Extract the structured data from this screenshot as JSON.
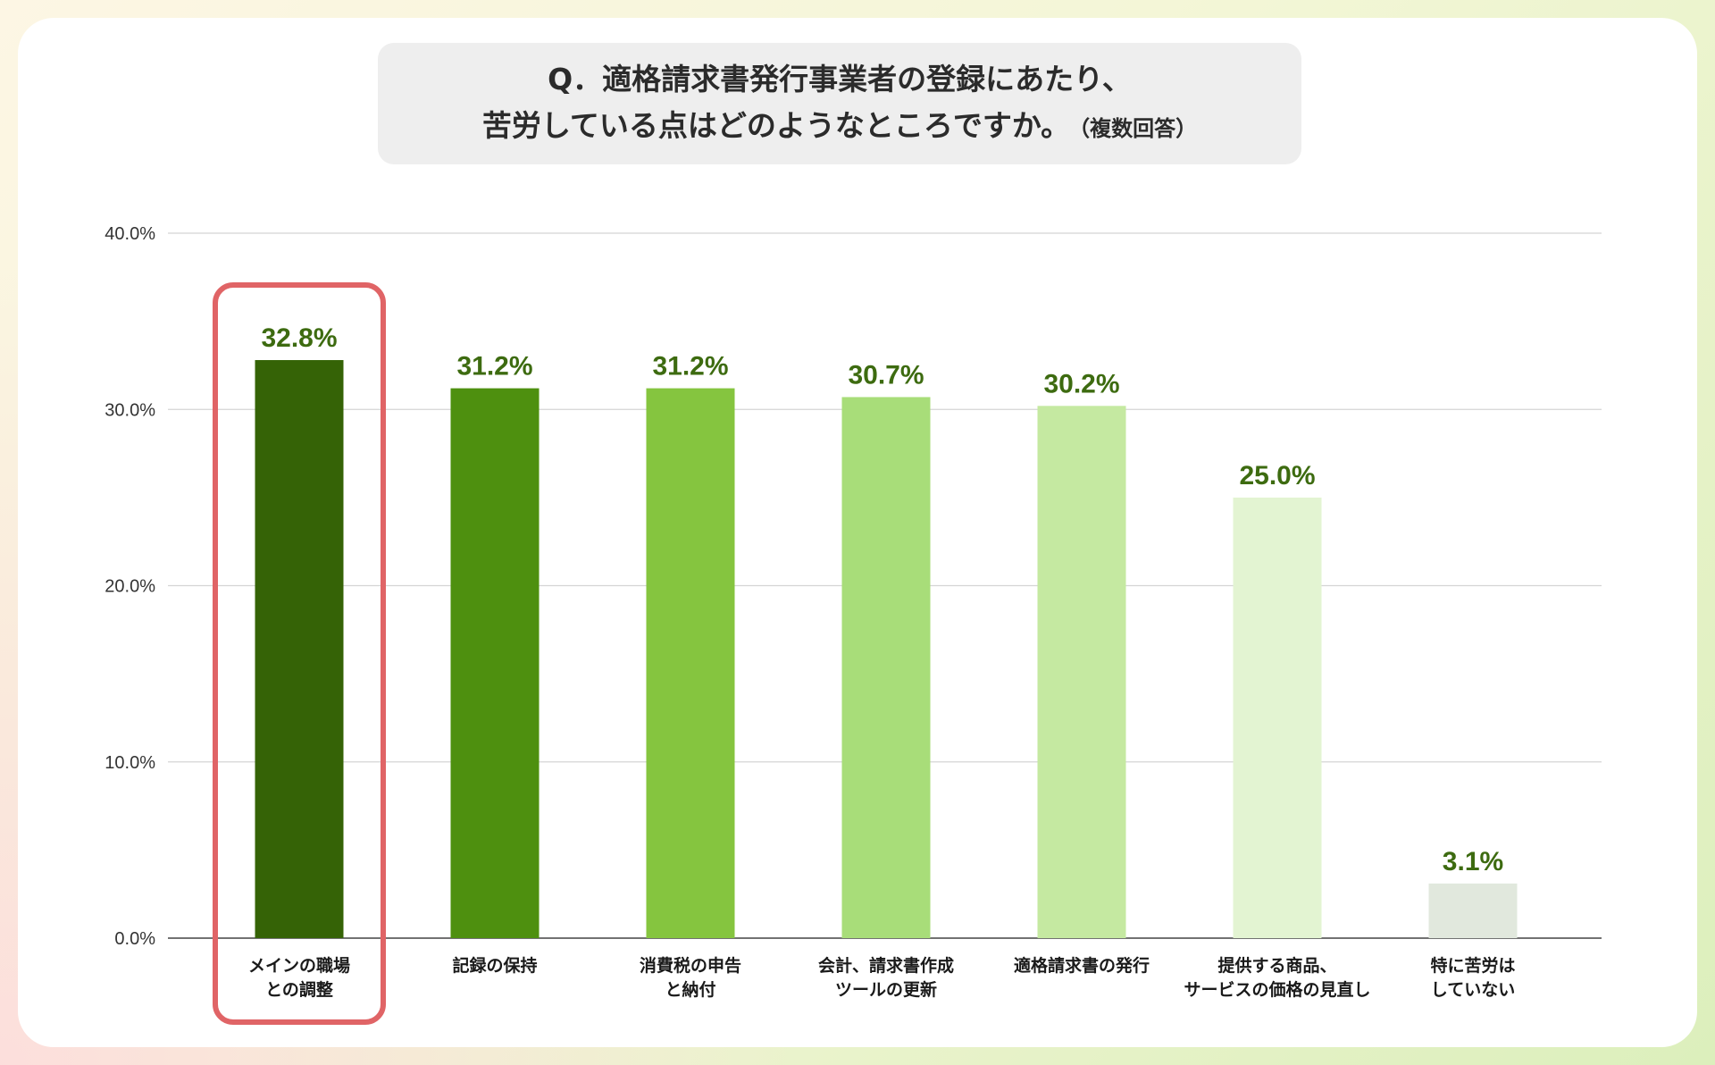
{
  "chart_data": {
    "type": "bar",
    "title_line1": "Q．適格請求書発行事業者の登録にあたり、",
    "title_line2": "苦労している点はどのようなところですか。",
    "title_note": "（複数回答）",
    "categories": [
      [
        "メインの職場",
        "との調整"
      ],
      [
        "記録の保持"
      ],
      [
        "消費税の申告",
        "と納付"
      ],
      [
        "会計、請求書作成",
        "ツールの更新"
      ],
      [
        "適格請求書の発行"
      ],
      [
        "提供する商品、",
        "サービスの価格の見直し"
      ],
      [
        "特に苦労は",
        "していない"
      ]
    ],
    "values": [
      32.8,
      31.2,
      31.2,
      30.7,
      30.2,
      25.0,
      3.1
    ],
    "value_labels": [
      "32.8%",
      "31.2%",
      "31.2%",
      "30.7%",
      "30.2%",
      "25.0%",
      "3.1%"
    ],
    "bar_colors": [
      "#356306",
      "#4e900f",
      "#85c53f",
      "#a8dd79",
      "#c5e9a1",
      "#e3f4d2",
      "#e1e8dd"
    ],
    "label_color": "#3d6b10",
    "highlight_color": "#e06466",
    "highlight_index": 0,
    "ylim": [
      0,
      40
    ],
    "y_ticks": [
      0,
      10,
      20,
      30,
      40
    ],
    "y_tick_labels": [
      "0.0%",
      "10.0%",
      "20.0%",
      "30.0%",
      "40.0%"
    ],
    "grid": true,
    "xlabel": "",
    "ylabel": ""
  }
}
